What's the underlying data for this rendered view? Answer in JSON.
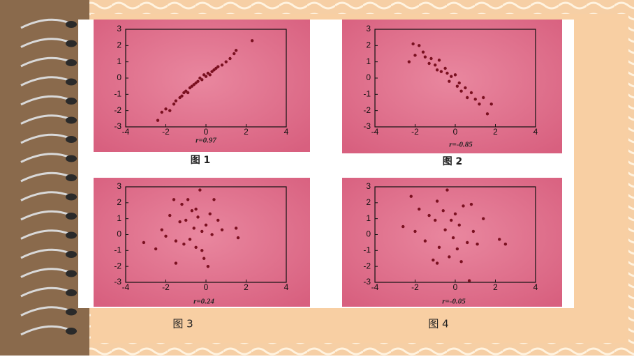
{
  "chart_data": [
    {
      "type": "scatter",
      "label": "r=0.97",
      "caption": "图 1",
      "color": "#7a1020",
      "x": [
        -2.4,
        -2.2,
        -2,
        -1.8,
        -1.6,
        -1.5,
        -1.3,
        -1.2,
        -1.1,
        -1,
        -0.9,
        -0.8,
        -0.7,
        -0.6,
        -0.5,
        -0.4,
        -0.3,
        -0.2,
        -0.1,
        0,
        0.1,
        0.2,
        0.3,
        0.4,
        0.5,
        0.6,
        0.8,
        1,
        1.2,
        1.4,
        1.5,
        2.3
      ],
      "y": [
        -2.6,
        -2.1,
        -1.9,
        -2,
        -1.6,
        -1.4,
        -1.2,
        -1.1,
        -0.9,
        -0.8,
        -0.9,
        -0.6,
        -0.5,
        -0.4,
        -0.3,
        -0.2,
        0,
        -0.1,
        0.2,
        0.1,
        0.3,
        0.2,
        0.4,
        0.5,
        0.6,
        0.7,
        0.8,
        1,
        1.2,
        1.5,
        1.7,
        2.3
      ],
      "xlim": [
        -4,
        4
      ],
      "ylim": [
        -3,
        3
      ],
      "xticks": [
        -4,
        -2,
        0,
        2,
        4
      ],
      "yticks": [
        -3,
        -2,
        -1,
        0,
        1,
        2,
        3
      ]
    },
    {
      "type": "scatter",
      "label": "r=-0.85",
      "caption": "图 2",
      "color": "#7a1020",
      "x": [
        -2.3,
        -2.1,
        -2,
        -1.8,
        -1.6,
        -1.5,
        -1.3,
        -1.2,
        -1,
        -0.9,
        -0.8,
        -0.7,
        -0.5,
        -0.4,
        -0.3,
        -0.2,
        0,
        0.1,
        0.2,
        0.3,
        0.5,
        0.6,
        0.8,
        1,
        1.2,
        1.4,
        1.6,
        1.8
      ],
      "y": [
        1,
        2.1,
        1.4,
        2,
        1.6,
        1.3,
        0.9,
        1.2,
        0.8,
        0.5,
        1.1,
        0.4,
        0.6,
        0.3,
        -0.2,
        0.1,
        0.2,
        -0.5,
        -0.3,
        -0.8,
        -0.6,
        -1.2,
        -0.9,
        -1.3,
        -1.6,
        -1.2,
        -2.2,
        -1.6
      ],
      "xlim": [
        -4,
        4
      ],
      "ylim": [
        -3,
        3
      ],
      "xticks": [
        -4,
        -2,
        0,
        2,
        4
      ],
      "yticks": [
        -3,
        -2,
        -1,
        0,
        1,
        2,
        3
      ]
    },
    {
      "type": "scatter",
      "label": "r=0.24",
      "caption": "图 3",
      "color": "#7a1020",
      "x": [
        -3.1,
        -2.5,
        -2.2,
        -2,
        -1.8,
        -1.6,
        -1.5,
        -1.3,
        -1.2,
        -1.1,
        -1,
        -0.9,
        -0.8,
        -0.7,
        -0.6,
        -0.5,
        -0.4,
        -0.3,
        -0.2,
        -0.1,
        0,
        0.1,
        0.2,
        0.3,
        0.4,
        0.6,
        0.8,
        1.5,
        1.6,
        -1.5,
        -0.2,
        -0.5
      ],
      "y": [
        -0.5,
        -0.9,
        0.3,
        -0.1,
        1.2,
        2.2,
        -1.8,
        0.8,
        1.9,
        -0.6,
        0.9,
        2.2,
        -0.3,
        1.5,
        0.4,
        -0.8,
        1.1,
        2.8,
        0.2,
        -1.5,
        0.6,
        -2,
        1.3,
        0,
        2.2,
        0.9,
        0.3,
        0.4,
        -0.2,
        -0.4,
        -1,
        1.6
      ],
      "xlim": [
        -4,
        4
      ],
      "ylim": [
        -3,
        3
      ],
      "xticks": [
        -4,
        -2,
        0,
        2,
        4
      ],
      "yticks": [
        -3,
        -2,
        -1,
        0,
        1,
        2,
        3
      ]
    },
    {
      "type": "scatter",
      "label": "r=-0.05",
      "caption": "图 4",
      "color": "#7a1020",
      "x": [
        -2.6,
        -2.2,
        -2,
        -1.8,
        -1.5,
        -1.3,
        -1.1,
        -1,
        -0.9,
        -0.8,
        -0.6,
        -0.5,
        -0.4,
        -0.3,
        -0.2,
        -0.1,
        0,
        0.1,
        0.2,
        0.3,
        0.4,
        0.6,
        0.7,
        0.9,
        1.1,
        1.4,
        2.2,
        2.5,
        -0.9,
        0.8
      ],
      "y": [
        0.5,
        2.4,
        0.2,
        1.6,
        -0.4,
        1.2,
        -1.6,
        0.9,
        2.1,
        -0.8,
        1.5,
        0.3,
        2.8,
        -1.4,
        0.9,
        -0.2,
        1.3,
        -0.9,
        0.6,
        -1.7,
        1.8,
        -0.5,
        -2.9,
        0.2,
        -0.6,
        1,
        -0.3,
        -0.6,
        -1.8,
        1.9
      ],
      "xlim": [
        -4,
        4
      ],
      "ylim": [
        -3,
        3
      ],
      "xticks": [
        -4,
        -2,
        0,
        2,
        4
      ],
      "yticks": [
        -3,
        -2,
        -1,
        0,
        1,
        2,
        3
      ]
    }
  ]
}
